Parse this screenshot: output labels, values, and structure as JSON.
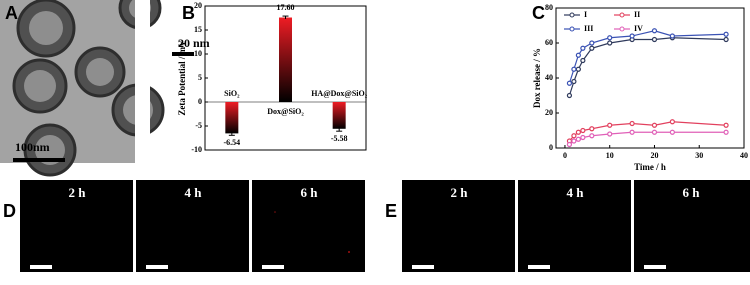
{
  "panel_labels": [
    "A",
    "B",
    "C",
    "D",
    "E"
  ],
  "panel_a": {
    "scale_labels": [
      "20 nm",
      "100nm"
    ]
  },
  "chart_data": [
    {
      "type": "bar",
      "ylabel": "Zeta Potential / mV",
      "categories": [
        "SiO₂",
        "Dox@SiO₂",
        "HA@Dox@SiO₂"
      ],
      "values": [
        -6.54,
        17.6,
        -5.58
      ],
      "value_labels": [
        "-6.54",
        "17.60",
        "-5.58"
      ],
      "errors": [
        0.4,
        0.3,
        0.5
      ],
      "color": "#ee1c24",
      "ylim": [
        -10,
        20
      ],
      "yticks": [
        -10,
        -5,
        0,
        5,
        10,
        15,
        20
      ]
    },
    {
      "type": "line",
      "xlabel": "Time / h",
      "ylabel": "Dox release / %",
      "x": [
        1,
        2,
        3,
        4,
        6,
        10,
        15,
        20,
        24,
        36
      ],
      "series": [
        {
          "name": "I",
          "color": "#2f3a5c",
          "values": [
            30,
            38,
            45,
            50,
            57,
            60,
            62,
            62,
            63,
            62
          ]
        },
        {
          "name": "II",
          "color": "#e2405e",
          "values": [
            4,
            7,
            9,
            10,
            11,
            13,
            14,
            13,
            15,
            13
          ]
        },
        {
          "name": "III",
          "color": "#3a52b4",
          "values": [
            37,
            45,
            53,
            57,
            60,
            63,
            64,
            67,
            64,
            65
          ]
        },
        {
          "name": "IV",
          "color": "#e060b8",
          "values": [
            2,
            4,
            5,
            6,
            7,
            8,
            9,
            9,
            9,
            9
          ]
        }
      ],
      "xlim": [
        -2,
        40
      ],
      "xticks": [
        0,
        10,
        20,
        30,
        40
      ],
      "ylim": [
        0,
        80
      ],
      "yticks": [
        0,
        20,
        40,
        60,
        80
      ]
    }
  ],
  "panel_d": {
    "time_labels": [
      "2 h",
      "4 h",
      "6 h"
    ]
  },
  "panel_e": {
    "time_labels": [
      "2 h",
      "4 h",
      "6 h"
    ]
  }
}
